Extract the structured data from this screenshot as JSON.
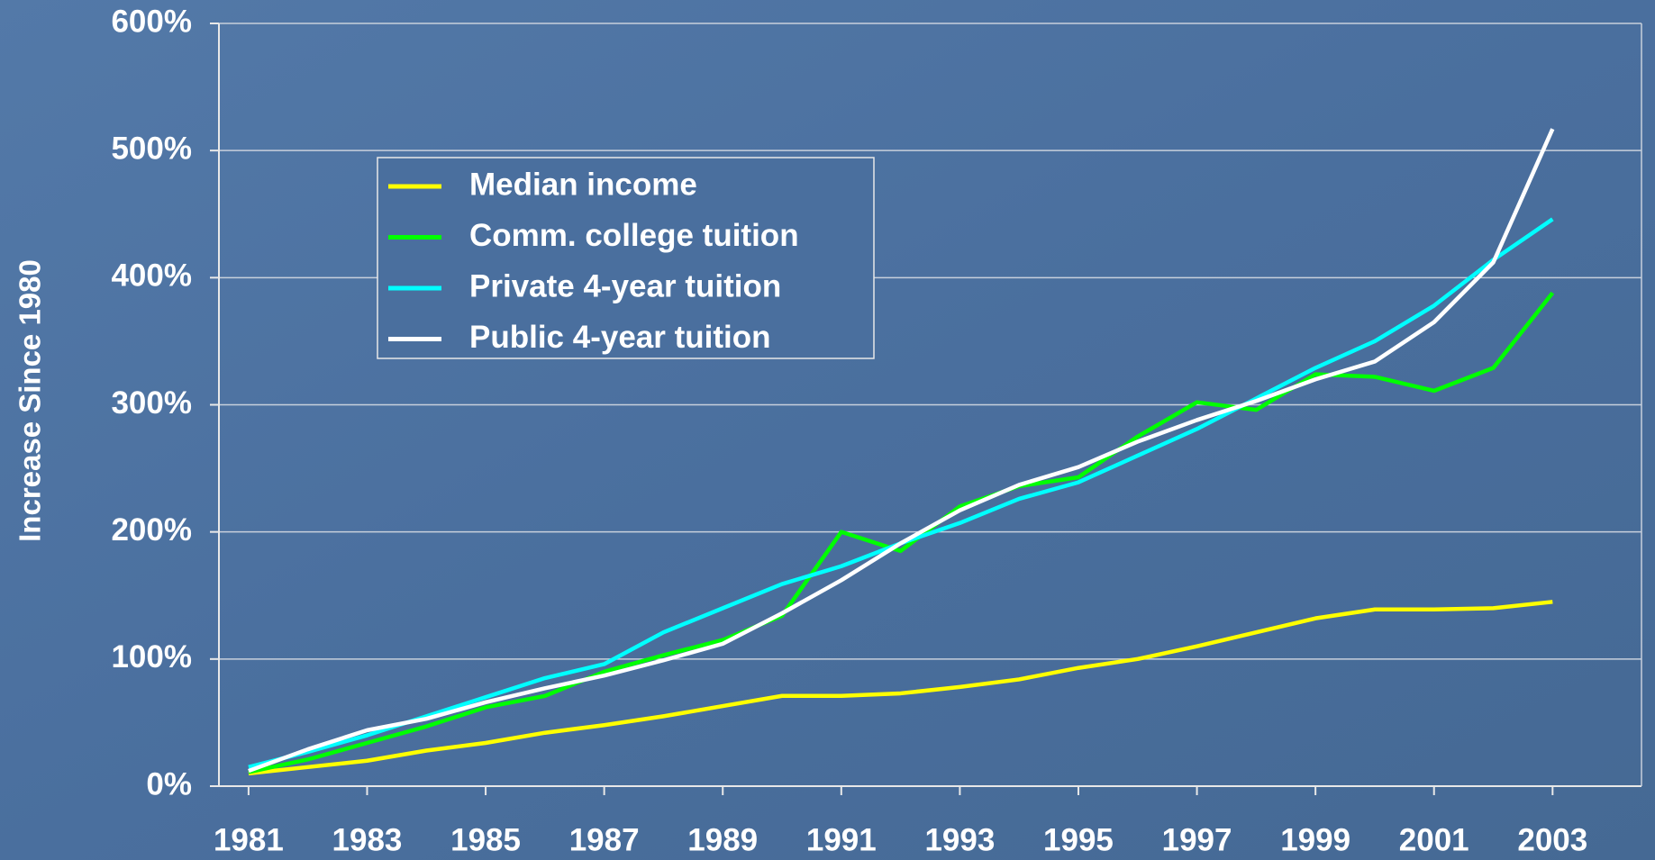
{
  "chart_data": {
    "type": "line",
    "y_label": "Increase Since 1980",
    "x": [
      1981,
      1982,
      1983,
      1984,
      1985,
      1986,
      1987,
      1988,
      1989,
      1990,
      1991,
      1992,
      1993,
      1994,
      1995,
      1996,
      1997,
      1998,
      1999,
      2000,
      2001,
      2002,
      2003
    ],
    "xlim": [
      1980.5,
      2004.5
    ],
    "xticks": [
      1981,
      1983,
      1985,
      1987,
      1989,
      1991,
      1993,
      1995,
      1997,
      1999,
      2001,
      2003
    ],
    "ylim": [
      0,
      600
    ],
    "yticks": [
      {
        "value": 0,
        "label": "0%"
      },
      {
        "value": 100,
        "label": "100%"
      },
      {
        "value": 200,
        "label": "200%"
      },
      {
        "value": 300,
        "label": "300%"
      },
      {
        "value": 400,
        "label": "400%"
      },
      {
        "value": 500,
        "label": "500%"
      },
      {
        "value": 600,
        "label": "600%"
      }
    ],
    "grid": true,
    "legend": "upper left",
    "series": [
      {
        "name": "Median income",
        "color": "#ffff00",
        "values": [
          10,
          15,
          20,
          28,
          34,
          42,
          48,
          55,
          63,
          71,
          71,
          73,
          78,
          84,
          93,
          100,
          110,
          121,
          132,
          139,
          139,
          140,
          145
        ]
      },
      {
        "name": "Comm. college tuition",
        "color": "#00ff00",
        "values": [
          11,
          21,
          34,
          47,
          62,
          71,
          90,
          103,
          115,
          134,
          200,
          185,
          220,
          236,
          243,
          275,
          302,
          296,
          324,
          322,
          311,
          329,
          388
        ]
      },
      {
        "name": "Private 4-year tuition",
        "color": "#00ffff",
        "values": [
          15,
          27,
          40,
          55,
          70,
          85,
          96,
          121,
          140,
          159,
          173,
          191,
          207,
          226,
          239,
          260,
          281,
          305,
          329,
          350,
          378,
          414,
          446
        ]
      },
      {
        "name": "Public 4-year tuition",
        "color": "#ffffff",
        "values": [
          12,
          29,
          44,
          53,
          66,
          77,
          87,
          99,
          112,
          136,
          162,
          191,
          217,
          237,
          251,
          271,
          288,
          303,
          320,
          334,
          365,
          412,
          517
        ]
      }
    ]
  }
}
